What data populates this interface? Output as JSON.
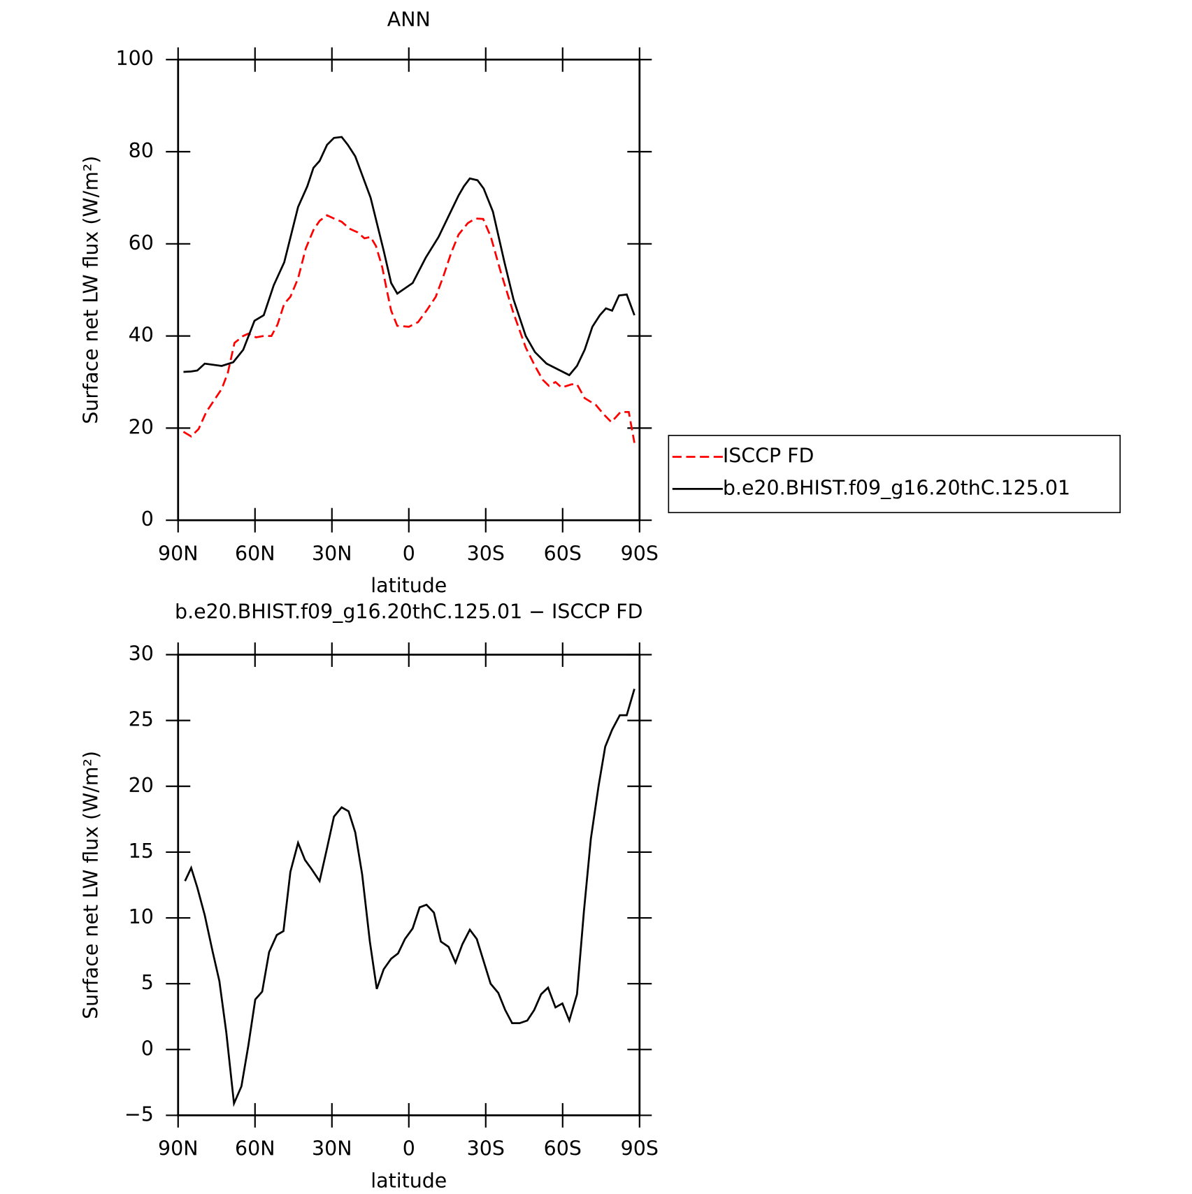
{
  "chart_data": [
    {
      "type": "line",
      "title": "ANN",
      "xlabel": "latitude",
      "ylabel": "Surface net LW flux (W/m²)",
      "xlim": [
        90,
        -90
      ],
      "ylim": [
        0,
        100
      ],
      "xticks": [
        {
          "value": 90,
          "label": "90N"
        },
        {
          "value": 60,
          "label": "60N"
        },
        {
          "value": 30,
          "label": "30N"
        },
        0,
        {
          "value": -30,
          "label": "30S"
        },
        {
          "value": -60,
          "label": "60S"
        },
        {
          "value": -90,
          "label": "90S"
        }
      ],
      "yticks": [
        0,
        20,
        40,
        60,
        80,
        100
      ],
      "series": [
        {
          "name": "ISCCP FD",
          "color": "#ff0000",
          "dash": true,
          "x": [
            87.9,
            84.9,
            82,
            79,
            76,
            73,
            70.6,
            68,
            64.6,
            62.6,
            59.6,
            56.6,
            53.6,
            51.2,
            48.6,
            46.2,
            43.2,
            40.2,
            37.2,
            34.8,
            31.9,
            29.2,
            26.2,
            23.2,
            20,
            17.3,
            14.9,
            12.8,
            10.4,
            8.6,
            6.9,
            4.5,
            0,
            -3.6,
            -6.9,
            -10.5,
            -13.5,
            -16.5,
            -19.4,
            -23,
            -26,
            -29,
            -32,
            -35.8,
            -40.8,
            -45.6,
            -49.2,
            -52.2,
            -54.6,
            -57.2,
            -59.6,
            -63.5,
            -65.6,
            -68.6,
            -73,
            -76,
            -79,
            -82.6,
            -85.8,
            -88
          ],
          "values": [
            19.2,
            18.2,
            19.8,
            23.5,
            26,
            28.5,
            32,
            38.5,
            40,
            40.5,
            39.7,
            40,
            40,
            42.5,
            47,
            48.5,
            52.5,
            59,
            63,
            65,
            66.2,
            65.5,
            64.8,
            63.3,
            62.5,
            61.2,
            61.5,
            59.5,
            55,
            50,
            45.5,
            42.2,
            42,
            43,
            45.5,
            48.5,
            53,
            58,
            62,
            64.5,
            65.5,
            65.4,
            61.5,
            54,
            45,
            37.5,
            33.5,
            30.5,
            29.2,
            30,
            28.8,
            29.5,
            29.5,
            26.5,
            25,
            23,
            21.3,
            23.5,
            23.5,
            16.8
          ]
        },
        {
          "name": "b.e20.BHIST.f09_g16.20thC.125.01",
          "color": "#000000",
          "dash": false,
          "x": [
            87.9,
            84.9,
            82.5,
            79.6,
            73,
            68.5,
            64.6,
            60.2,
            56.6,
            52.7,
            48.6,
            43.2,
            39.6,
            37.2,
            34.8,
            31.9,
            29.2,
            26.2,
            23.8,
            20.9,
            14.9,
            9.8,
            6.9,
            4.5,
            -1.5,
            -6.6,
            -11.6,
            -15.5,
            -19.4,
            -21.5,
            -23.8,
            -26.8,
            -29.2,
            -32.8,
            -37.3,
            -40.8,
            -45.6,
            -49.2,
            -53.7,
            -62.6,
            -65.6,
            -68.6,
            -71.6,
            -74.5,
            -76.9,
            -79.3,
            -82,
            -85,
            -88
          ],
          "values": [
            32.2,
            32.3,
            32.5,
            34,
            33.5,
            34.3,
            37,
            43.3,
            44.5,
            51,
            56,
            68,
            72.5,
            76.5,
            78,
            81.5,
            83,
            83.2,
            81.5,
            79,
            70,
            58.5,
            51.5,
            49.2,
            51.5,
            57,
            61.5,
            66,
            70.5,
            72.5,
            74.2,
            73.8,
            72,
            67,
            56,
            48,
            40,
            36.5,
            34,
            31.5,
            33.5,
            37,
            42,
            44.5,
            46,
            45.5,
            48.8,
            49,
            44.5
          ]
        }
      ]
    },
    {
      "type": "line",
      "title": "b.e20.BHIST.f09_g16.20thC.125.01 − ISCCP FD",
      "xlabel": "latitude",
      "ylabel": "Surface net LW flux (W/m²)",
      "xlim": [
        90,
        -90
      ],
      "ylim": [
        -5,
        30
      ],
      "xticks": [
        {
          "value": 90,
          "label": "90N"
        },
        {
          "value": 60,
          "label": "60N"
        },
        {
          "value": 30,
          "label": "30N"
        },
        0,
        {
          "value": -30,
          "label": "30S"
        },
        {
          "value": -60,
          "label": "60S"
        },
        {
          "value": -90,
          "label": "90S"
        }
      ],
      "yticks": [
        {
          "value": -5,
          "label": "−5"
        },
        0,
        5,
        10,
        15,
        20,
        25,
        30
      ],
      "series": [
        {
          "color": "#000000",
          "dash": false,
          "x": [
            87.3,
            84.9,
            82.5,
            79.6,
            76.6,
            73.9,
            71.2,
            68.2,
            65.3,
            62.6,
            59.9,
            57.2,
            54.5,
            51.5,
            48.9,
            46.2,
            43.2,
            40.5,
            37.9,
            34.8,
            31.9,
            29.2,
            26.2,
            23.5,
            20.9,
            18.2,
            15.2,
            12.5,
            9.8,
            6.9,
            4.2,
            1.5,
            -1.5,
            -4.2,
            -6.9,
            -9.8,
            -12.5,
            -15.5,
            -18.2,
            -20.9,
            -23.8,
            -26.5,
            -29.2,
            -31.9,
            -34.9,
            -37.6,
            -40.3,
            -43.2,
            -46.2,
            -48.9,
            -51.6,
            -54.3,
            -57.2,
            -59.9,
            -62.6,
            -65.6,
            -68.3,
            -71,
            -74,
            -76.6,
            -79.3,
            -82.3,
            -85,
            -88
          ],
          "values": [
            12.8,
            13.8,
            12.3,
            10.2,
            7.5,
            5.2,
            1.3,
            -4.1,
            -2.8,
            0.3,
            3.8,
            4.4,
            7.4,
            8.7,
            9,
            13.5,
            15.7,
            14.4,
            13.7,
            12.8,
            15.3,
            17.7,
            18.4,
            18.1,
            16.5,
            13.3,
            8.2,
            4.6,
            6.1,
            6.9,
            7.3,
            8.4,
            9.2,
            10.8,
            11,
            10.4,
            8.2,
            7.8,
            6.6,
            8,
            9.1,
            8.4,
            6.7,
            5,
            4.3,
            3,
            2,
            2,
            2.2,
            3,
            4.2,
            4.7,
            3.2,
            3.5,
            2.2,
            4.2,
            10.5,
            16,
            20,
            23,
            24.3,
            25.4,
            25.4,
            27.4
          ]
        }
      ]
    }
  ]
}
